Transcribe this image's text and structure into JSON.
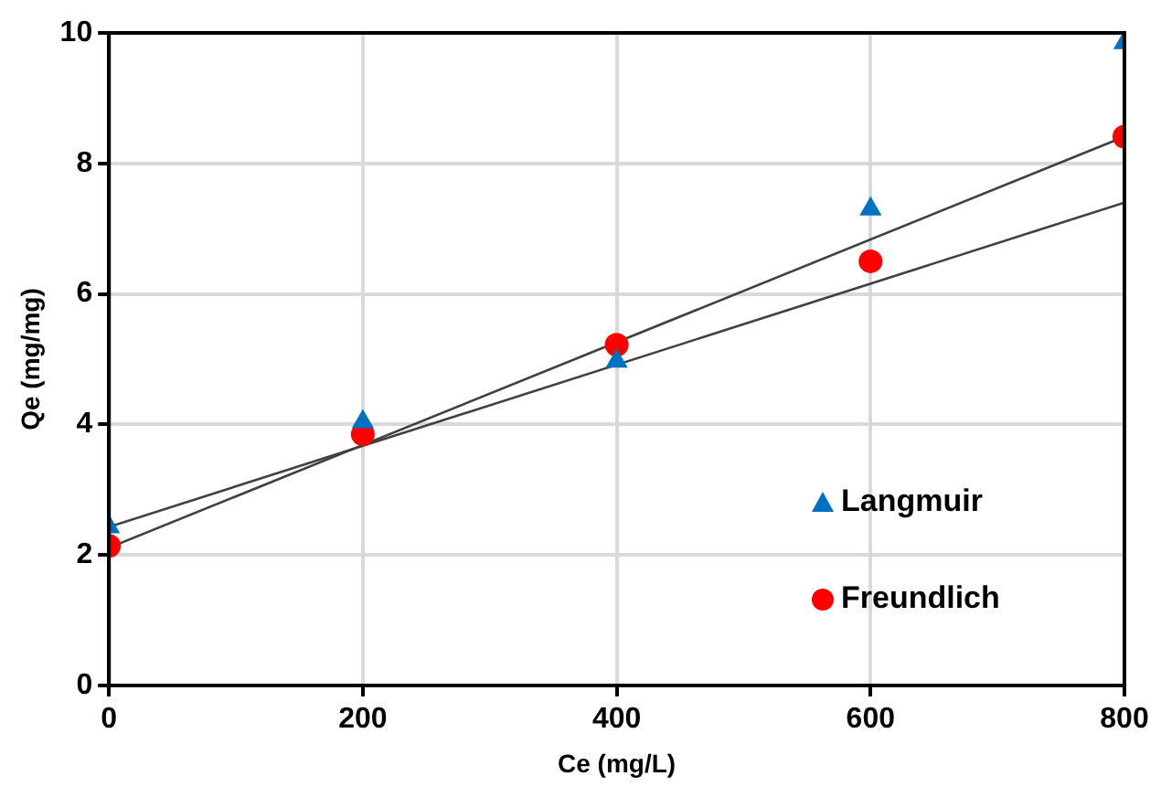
{
  "chart_data": {
    "type": "scatter",
    "xlabel": "Ce (mg/L)",
    "ylabel": "Qe (mg/mg)",
    "xlim": [
      0,
      800
    ],
    "xticks": [
      0,
      200,
      400,
      600,
      800
    ],
    "ylim": [
      0,
      10
    ],
    "yticks": [
      0,
      2,
      4,
      6,
      8,
      10
    ],
    "grid": true,
    "legend": "bottom right",
    "series": [
      {
        "name": "Langmuir",
        "marker": "triangle",
        "color": "#0070c0",
        "x": [
          0,
          200,
          400,
          600,
          800
        ],
        "values": [
          2.43,
          4.04,
          4.97,
          7.3,
          9.85
        ]
      },
      {
        "name": "Freundlich",
        "marker": "circle",
        "color": "#ff0000",
        "x": [
          0,
          200,
          400,
          600,
          800
        ],
        "values": [
          2.14,
          3.85,
          5.22,
          6.5,
          8.41
        ]
      },
      {
        "type": "line",
        "marker": "none",
        "color": "#404040",
        "x": [
          0,
          800
        ],
        "values": [
          2.11,
          8.41
        ]
      },
      {
        "type": "line",
        "marker": "none",
        "color": "#404040",
        "x": [
          0,
          800
        ],
        "values": [
          2.43,
          7.4
        ]
      }
    ]
  }
}
